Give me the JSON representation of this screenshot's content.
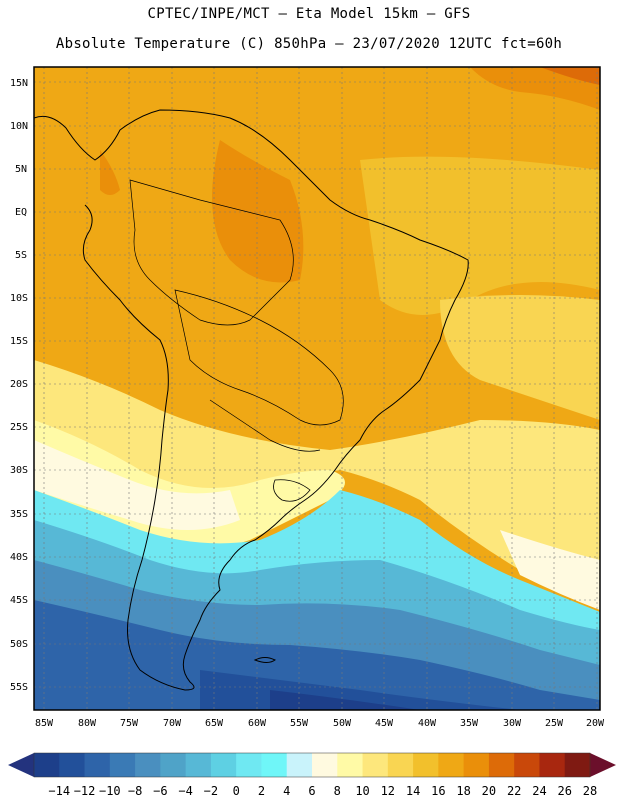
{
  "header": {
    "line1": "CPTEC/INPE/MCT –  Eta Model 15km – GFS",
    "line2": "Absolute Temperature (C) 850hPa – 23/07/2020 12UTC fct=60h"
  },
  "map": {
    "lat_labels": [
      "15N",
      "10N",
      "5N",
      "EQ",
      "5S",
      "10S",
      "15S",
      "20S",
      "25S",
      "30S",
      "35S",
      "40S",
      "45S",
      "50S",
      "55S"
    ],
    "lon_labels": [
      "85W",
      "80W",
      "75W",
      "70W",
      "65W",
      "60W",
      "55W",
      "50W",
      "45W",
      "40W",
      "35W",
      "30W",
      "25W",
      "20W"
    ]
  },
  "colorbar": {
    "labels": [
      "-14",
      "-12",
      "-10",
      "-8",
      "-6",
      "-4",
      "-2",
      "0",
      "2",
      "4",
      "6",
      "8",
      "10",
      "12",
      "14",
      "16",
      "18",
      "20",
      "22",
      "24",
      "26",
      "28"
    ],
    "colors": [
      "#1d3f8a",
      "#22509a",
      "#2e64a9",
      "#3a7ab5",
      "#4a8fbf",
      "#4fa3c8",
      "#57b8d6",
      "#5ed0e3",
      "#6fe8f2",
      "#6ff6f8",
      "#c9f3fb",
      "#fffae0",
      "#fffaa6",
      "#fde77c",
      "#f9d552",
      "#f2c02c",
      "#efa815",
      "#ea8f0a",
      "#dd6b08",
      "#c9480a",
      "#a8270f",
      "#7f1a12"
    ],
    "left_tip_color": "#23337e",
    "right_tip_color": "#6b0f2b"
  }
}
